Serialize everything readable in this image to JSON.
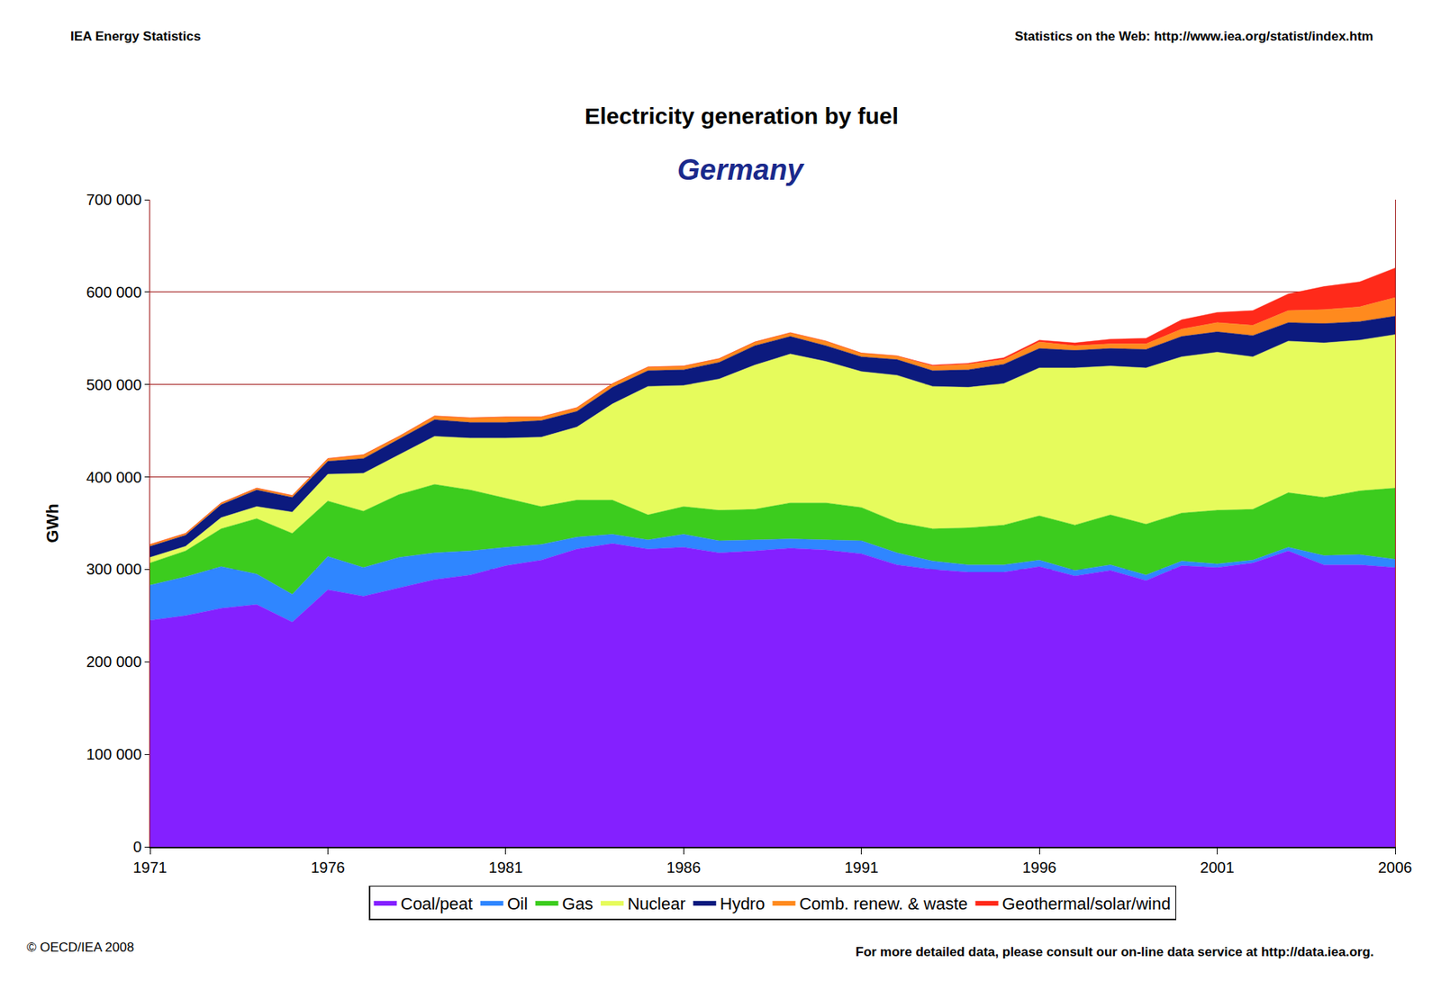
{
  "chart_data": {
    "type": "area",
    "stacked": true,
    "title": "Electricity generation by fuel",
    "subtitle": "Germany",
    "header_left": "IEA Energy Statistics",
    "header_right": "Statistics on the Web: http://www.iea.org/statist/index.htm",
    "footer_left": "© OECD/IEA 2008",
    "footer_right": "For more detailed data, please consult our on-line data service at http://data.iea.org.",
    "y_label": "GWh",
    "x": [
      1971,
      1972,
      1973,
      1974,
      1975,
      1976,
      1977,
      1978,
      1979,
      1980,
      1981,
      1982,
      1983,
      1984,
      1985,
      1986,
      1987,
      1988,
      1989,
      1990,
      1991,
      1992,
      1993,
      1994,
      1995,
      1996,
      1997,
      1998,
      1999,
      2000,
      2001,
      2002,
      2003,
      2004,
      2005,
      2006
    ],
    "xlim": [
      1971,
      2006
    ],
    "xticks": [
      1971,
      1976,
      1981,
      1986,
      1991,
      1996,
      2001,
      2006
    ],
    "ylim": [
      0,
      700000
    ],
    "yticks": [
      0,
      {
        "value": 100000,
        "label": "100 000"
      },
      {
        "value": 200000,
        "label": "200 000"
      },
      {
        "value": 300000,
        "label": "300 000"
      },
      {
        "value": 400000,
        "label": "400 000"
      },
      {
        "value": 500000,
        "label": "500 000"
      },
      {
        "value": 600000,
        "label": "600 000"
      },
      {
        "value": 700000,
        "label": "700 000"
      }
    ],
    "grid": true,
    "legend": "bottom",
    "series": [
      {
        "name": "Coal/peat",
        "color": "#8420ff",
        "values": [
          245000,
          250000,
          258000,
          262000,
          243000,
          278000,
          271000,
          280000,
          289000,
          294000,
          304000,
          310000,
          322000,
          328000,
          322000,
          324000,
          318000,
          320000,
          323000,
          321000,
          317000,
          305000,
          300000,
          297000,
          297000,
          303000,
          293000,
          299000,
          288000,
          304000,
          302000,
          307000,
          320000,
          305000,
          305000,
          302000
        ]
      },
      {
        "name": "Oil",
        "color": "#2f86ff",
        "values": [
          38000,
          42000,
          45000,
          33000,
          30000,
          36000,
          31000,
          33000,
          29000,
          26000,
          20000,
          17000,
          13000,
          10000,
          10000,
          14000,
          13000,
          12000,
          10000,
          11000,
          14000,
          13000,
          9000,
          8000,
          8000,
          7000,
          6000,
          6000,
          6000,
          5000,
          4000,
          3000,
          4000,
          10000,
          11000,
          9000
        ]
      },
      {
        "name": "Gas",
        "color": "#3ccc1e",
        "values": [
          24000,
          28000,
          41000,
          60000,
          66000,
          60000,
          61000,
          68000,
          74000,
          66000,
          53000,
          41000,
          40000,
          37000,
          27000,
          30000,
          33000,
          33000,
          39000,
          40000,
          36000,
          33000,
          35000,
          40000,
          43000,
          48000,
          49000,
          54000,
          55000,
          52000,
          58000,
          55000,
          59000,
          63000,
          69000,
          77000
        ]
      },
      {
        "name": "Nuclear",
        "color": "#e6fb5c",
        "values": [
          6000,
          5000,
          12000,
          13000,
          23000,
          29000,
          41000,
          43000,
          52000,
          56000,
          65000,
          75000,
          79000,
          104000,
          139000,
          131000,
          142000,
          156000,
          161000,
          153000,
          147000,
          159000,
          154000,
          152000,
          153000,
          160000,
          170000,
          161000,
          169000,
          169000,
          171000,
          165000,
          164000,
          167000,
          163000,
          166000
        ]
      },
      {
        "name": "Hydro",
        "color": "#0c1a7e",
        "values": [
          12000,
          12000,
          14000,
          18000,
          16000,
          14000,
          16000,
          17000,
          18000,
          17000,
          17000,
          18000,
          17000,
          18000,
          17000,
          17000,
          18000,
          21000,
          19000,
          17000,
          16000,
          17000,
          17000,
          19000,
          21000,
          21000,
          19000,
          19000,
          20000,
          22000,
          22000,
          23000,
          20000,
          21000,
          20000,
          20000
        ]
      },
      {
        "name": "Comb. renew. & waste",
        "color": "#ff8a1e",
        "values": [
          2000,
          2000,
          2000,
          2000,
          2000,
          3000,
          4000,
          3000,
          4000,
          5000,
          6000,
          4000,
          4000,
          4000,
          4000,
          4000,
          4000,
          4000,
          4000,
          5000,
          4000,
          4000,
          5000,
          6000,
          5000,
          7000,
          5000,
          5000,
          6000,
          8000,
          10000,
          11000,
          13000,
          15000,
          16000,
          20000
        ]
      },
      {
        "name": "Geothermal/solar/wind",
        "color": "#ff2a1a",
        "values": [
          0,
          0,
          0,
          0,
          0,
          0,
          0,
          0,
          0,
          0,
          0,
          0,
          0,
          0,
          0,
          0,
          0,
          0,
          0,
          0,
          0,
          0,
          1000,
          1000,
          2000,
          2000,
          3000,
          5000,
          6000,
          10000,
          11000,
          16000,
          18000,
          25000,
          27000,
          32000
        ]
      }
    ]
  }
}
